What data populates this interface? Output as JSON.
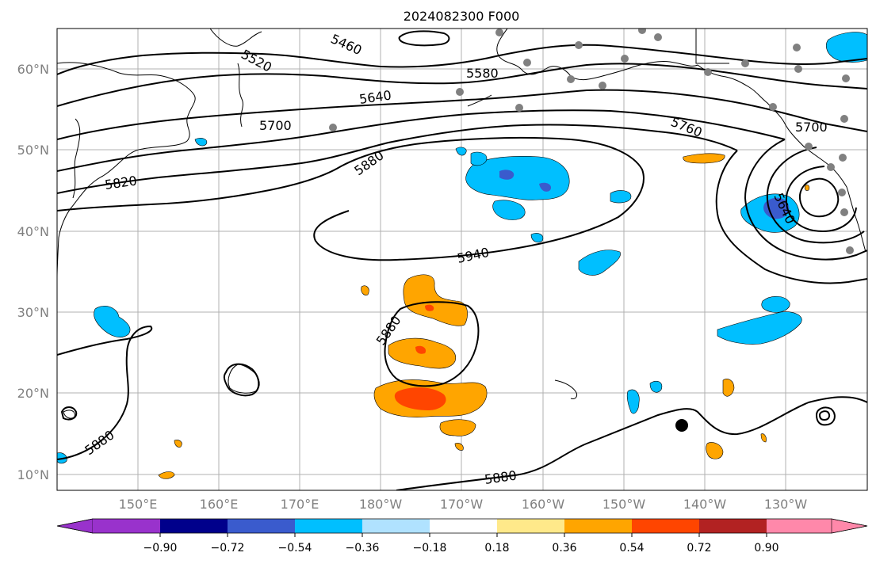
{
  "title": "2024082300 F000",
  "map": {
    "lat_ticks": [
      "10°N",
      "20°N",
      "30°N",
      "40°N",
      "50°N",
      "60°N"
    ],
    "lon_ticks": [
      "150°E",
      "160°E",
      "170°E",
      "180°W",
      "170°W",
      "160°W",
      "150°W",
      "140°W",
      "130°W"
    ],
    "contour_labels": [
      "5520",
      "5460",
      "5580",
      "5640",
      "5700",
      "5760",
      "5820",
      "5880",
      "5940",
      "5880",
      "5880",
      "5880",
      "5700",
      "5640"
    ],
    "colors": {
      "contour": "#000000",
      "grid": "#b0b0b0",
      "land_outline": "#000000",
      "station_marker": "#808080"
    }
  },
  "colorbar": {
    "ticks": [
      "−0.90",
      "−0.72",
      "−0.54",
      "−0.36",
      "−0.18",
      "0.18",
      "0.36",
      "0.54",
      "0.72",
      "0.90"
    ],
    "colors": [
      "#9932cc",
      "#00008b",
      "#3a5bcd",
      "#00bfff",
      "#b0e2ff",
      "#ffffff",
      "#ffe98a",
      "#ffa500",
      "#ff4500",
      "#b22222",
      "#ff88aa",
      "#ff88aa"
    ]
  }
}
